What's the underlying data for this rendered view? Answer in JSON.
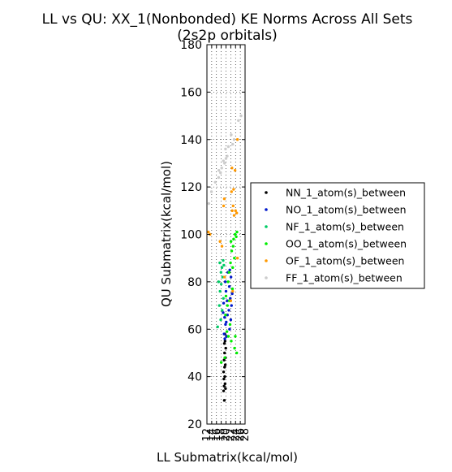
{
  "chart_data": {
    "type": "scatter",
    "title_line1": "LL vs QU: XX_1(Nonbonded) KE Norms Across All Sets",
    "title_line2": "(2s2p orbitals)",
    "xlabel": "LL Submatrix(kcal/mol)",
    "ylabel": "QU Submatrix(kcal/mol)",
    "xlim": [
      12,
      28
    ],
    "ylim": [
      20,
      180
    ],
    "xticks": [
      12,
      14,
      16,
      18,
      20,
      22,
      24,
      26,
      28
    ],
    "yticks": [
      20,
      40,
      60,
      80,
      100,
      120,
      140,
      160,
      180
    ],
    "grid": true,
    "legend_position": "outside-right",
    "series": [
      {
        "name": "NN_1_atom(s)_between",
        "color": "#000000",
        "points": [
          [
            19.3,
            30
          ],
          [
            19.0,
            34
          ],
          [
            19.8,
            35
          ],
          [
            19.2,
            36
          ],
          [
            19.6,
            37
          ],
          [
            19.1,
            39
          ],
          [
            19.5,
            40
          ],
          [
            19.0,
            42
          ],
          [
            19.4,
            44
          ],
          [
            19.7,
            45
          ],
          [
            19.2,
            47
          ],
          [
            19.8,
            48
          ],
          [
            19.4,
            50
          ],
          [
            19.9,
            52
          ],
          [
            19.3,
            54
          ],
          [
            19.6,
            55
          ],
          [
            20.2,
            57
          ],
          [
            19.5,
            58
          ]
        ]
      },
      {
        "name": "NO_1_atom(s)_between",
        "color": "#0019cc",
        "points": [
          [
            19.5,
            56
          ],
          [
            20.3,
            57
          ],
          [
            19.2,
            58
          ],
          [
            21.5,
            60
          ],
          [
            19.8,
            62
          ],
          [
            20.1,
            63
          ],
          [
            22.0,
            64
          ],
          [
            19.4,
            65
          ],
          [
            20.6,
            66
          ],
          [
            18.8,
            67
          ],
          [
            21.2,
            68
          ],
          [
            22.3,
            70
          ],
          [
            19.0,
            71
          ],
          [
            20.5,
            72
          ],
          [
            21.8,
            73
          ],
          [
            22.6,
            75
          ],
          [
            20.0,
            76
          ],
          [
            21.4,
            78
          ],
          [
            19.7,
            80
          ],
          [
            22.1,
            82
          ],
          [
            20.8,
            84
          ],
          [
            21.6,
            85
          ]
        ]
      },
      {
        "name": "NF_1_atom(s)_between",
        "color": "#00cc66",
        "points": [
          [
            16.5,
            61
          ],
          [
            17.8,
            64
          ],
          [
            18.4,
            68
          ],
          [
            17.2,
            70
          ],
          [
            18.9,
            73
          ],
          [
            17.5,
            76
          ],
          [
            18.0,
            79
          ],
          [
            16.9,
            80
          ],
          [
            18.6,
            82
          ],
          [
            17.9,
            84
          ],
          [
            18.3,
            86
          ],
          [
            19.1,
            87
          ],
          [
            17.4,
            88
          ],
          [
            18.8,
            89
          ]
        ]
      },
      {
        "name": "OO_1_atom(s)_between",
        "color": "#00ee00",
        "points": [
          [
            18.0,
            46
          ],
          [
            19.5,
            48
          ],
          [
            24.5,
            50
          ],
          [
            23.6,
            52
          ],
          [
            22.2,
            55
          ],
          [
            21.0,
            57
          ],
          [
            23.9,
            57
          ],
          [
            20.4,
            59
          ],
          [
            21.7,
            62
          ],
          [
            19.8,
            66
          ],
          [
            20.6,
            70
          ],
          [
            21.4,
            72
          ],
          [
            20.0,
            74
          ],
          [
            22.7,
            77
          ],
          [
            20.9,
            80
          ],
          [
            21.3,
            84
          ],
          [
            22.8,
            86
          ],
          [
            21.9,
            88
          ],
          [
            23.5,
            90
          ],
          [
            22.4,
            93
          ],
          [
            23.0,
            95
          ],
          [
            22.1,
            97
          ],
          [
            23.2,
            98
          ],
          [
            24.3,
            99
          ],
          [
            23.8,
            100
          ],
          [
            24.6,
            101
          ]
        ]
      },
      {
        "name": "OF_1_atom(s)_between",
        "color": "#ff9900",
        "points": [
          [
            12.6,
            101
          ],
          [
            13.3,
            100
          ],
          [
            17.5,
            97
          ],
          [
            18.3,
            95
          ],
          [
            24.8,
            90
          ],
          [
            19.4,
            82
          ],
          [
            22.8,
            76
          ],
          [
            22.0,
            72
          ],
          [
            23.4,
            108
          ],
          [
            24.0,
            110
          ],
          [
            23.0,
            112
          ],
          [
            22.6,
            110
          ],
          [
            24.5,
            109
          ],
          [
            19.0,
            112
          ],
          [
            19.3,
            115
          ],
          [
            22.3,
            118
          ],
          [
            23.2,
            119
          ],
          [
            23.8,
            127
          ],
          [
            22.5,
            128
          ],
          [
            24.8,
            140
          ]
        ]
      },
      {
        "name": "FF_1_atom(s)_between",
        "color": "#cccccc",
        "points": [
          [
            12.8,
            113
          ],
          [
            13.9,
            118
          ],
          [
            15.5,
            122
          ],
          [
            16.9,
            124
          ],
          [
            17.7,
            126
          ],
          [
            18.2,
            128
          ],
          [
            19.4,
            130
          ],
          [
            20.0,
            132
          ],
          [
            20.5,
            133
          ],
          [
            19.8,
            136
          ],
          [
            21.0,
            137
          ],
          [
            22.2,
            142
          ],
          [
            23.4,
            140
          ],
          [
            25.2,
            148
          ],
          [
            26.3,
            150
          ],
          [
            17.0,
            127
          ],
          [
            18.9,
            131
          ],
          [
            22.8,
            138
          ]
        ]
      }
    ]
  }
}
